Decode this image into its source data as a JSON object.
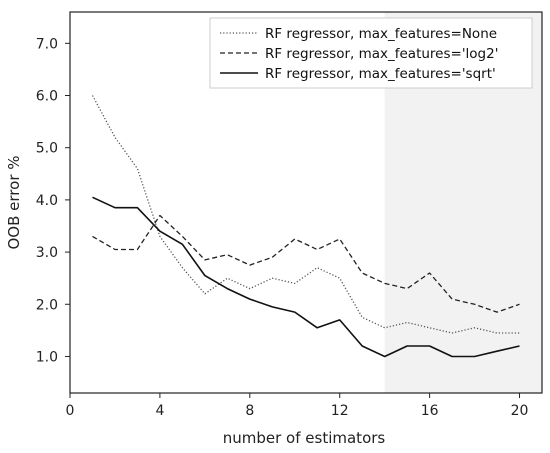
{
  "chart_data": {
    "type": "line",
    "title": "",
    "xlabel": "number of estimators",
    "ylabel": "OOB error %",
    "xlim": [
      0,
      21
    ],
    "ylim": [
      0.3,
      7.6
    ],
    "xticks": [
      0,
      4,
      8,
      12,
      16,
      20
    ],
    "yticks": [
      1.0,
      2.0,
      3.0,
      4.0,
      5.0,
      6.0,
      7.0
    ],
    "xtick_labels": [
      "0",
      "4",
      "8",
      "12",
      "16",
      "20"
    ],
    "ytick_labels": [
      "1.0",
      "2.0",
      "3.0",
      "4.0",
      "5.0",
      "6.0",
      "7.0"
    ],
    "grid": false,
    "legend_position": "top-right",
    "shaded_region": {
      "x_start": 14,
      "x_end": 21,
      "color": "#f2f2f2"
    },
    "x": [
      1,
      2,
      3,
      4,
      5,
      6,
      7,
      8,
      9,
      10,
      11,
      12,
      13,
      14,
      15,
      16,
      17,
      18,
      19,
      20
    ],
    "series": [
      {
        "name": "RF regressor, max_features=None",
        "style": "dotted",
        "color": "#555555",
        "values": [
          6.0,
          5.2,
          4.6,
          3.3,
          2.7,
          2.2,
          2.5,
          2.3,
          2.5,
          2.4,
          2.7,
          2.5,
          1.75,
          1.55,
          1.65,
          1.55,
          1.45,
          1.55,
          1.45,
          1.45
        ]
      },
      {
        "name": "RF regressor, max_features='log2'",
        "style": "dashed",
        "color": "#222222",
        "values": [
          3.3,
          3.05,
          3.05,
          3.7,
          3.3,
          2.85,
          2.95,
          2.75,
          2.9,
          3.25,
          3.05,
          3.25,
          2.6,
          2.4,
          2.3,
          2.6,
          2.1,
          2.0,
          1.85,
          2.0
        ]
      },
      {
        "name": "RF regressor, max_features='sqrt'",
        "style": "solid",
        "color": "#111111",
        "values": [
          4.05,
          3.85,
          3.85,
          3.4,
          3.15,
          2.55,
          2.3,
          2.1,
          1.95,
          1.85,
          1.55,
          1.7,
          1.2,
          1.0,
          1.2,
          1.2,
          1.0,
          1.0,
          1.1,
          1.2
        ]
      }
    ]
  }
}
